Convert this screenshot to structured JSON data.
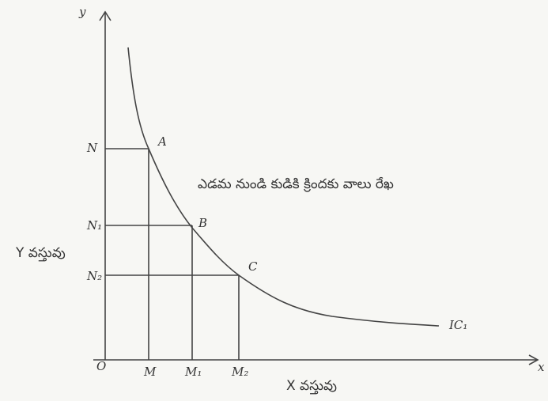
{
  "axes": {
    "y_axis_label": "y",
    "x_axis_label": "x",
    "origin": "O",
    "y_title": "Y వస్తువు",
    "x_title": "X వస్తువు"
  },
  "y_marks": [
    "N",
    "N₁",
    "N₂"
  ],
  "x_marks": [
    "M",
    "M₁",
    "M₂"
  ],
  "points": [
    "A",
    "B",
    "C"
  ],
  "curve_label": "IC₁",
  "caption": "ఎడమ నుండి కుడికి క్రిందకు వాలు రేఖ"
}
